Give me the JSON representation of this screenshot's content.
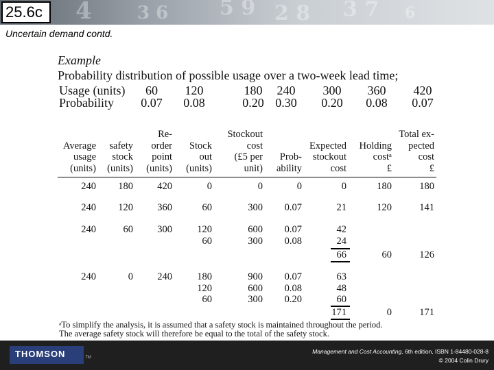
{
  "header": {
    "slide_number": "25.6c",
    "subtitle": "Uncertain demand contd."
  },
  "example": {
    "heading": "Example",
    "title": "Probability distribution of possible usage over a two-week lead time;",
    "usage_label": "Usage (units)",
    "probability_label": "Probability",
    "usage_values": [
      "60",
      "120",
      "180",
      "240",
      "300",
      "360",
      "420"
    ],
    "probability_values": [
      "0.07",
      "0.08",
      "0.20",
      "0.30",
      "0.20",
      "0.08",
      "0.07"
    ]
  },
  "table": {
    "headers": [
      "Average\nusage\n(units)",
      "safety\nstock\n(units)",
      "Re-\norder\npoint\n(units)",
      "Stock\nout\n(units)",
      "Stockout\ncost\n(£5 per\nunit)",
      "Prob-\nability",
      "Expected\nstockout\ncost",
      "Holding\ncostᵃ\n£",
      "Total ex-\npected\ncost\n£"
    ],
    "groups": [
      {
        "avg": "240",
        "safety": "180",
        "reorder": "420",
        "stockout": [
          "0"
        ],
        "cost": [
          "0"
        ],
        "prob": [
          "0"
        ],
        "expected": [
          "0"
        ],
        "subtotal": "",
        "holding": "180",
        "total": "180"
      },
      {
        "avg": "240",
        "safety": "120",
        "reorder": "360",
        "stockout": [
          "60"
        ],
        "cost": [
          "300"
        ],
        "prob": [
          "0.07"
        ],
        "expected": [
          "21"
        ],
        "subtotal": "",
        "holding": "120",
        "total": "141"
      },
      {
        "avg": "240",
        "safety": "60",
        "reorder": "300",
        "stockout": [
          "120",
          "60"
        ],
        "cost": [
          "600",
          "300"
        ],
        "prob": [
          "0.07",
          "0.08"
        ],
        "expected": [
          "42",
          "24"
        ],
        "subtotal": "66",
        "holding": "60",
        "total": "126"
      },
      {
        "avg": "240",
        "safety": "0",
        "reorder": "240",
        "stockout": [
          "180",
          "120",
          "60"
        ],
        "cost": [
          "900",
          "600",
          "300"
        ],
        "prob": [
          "0.07",
          "0.08",
          "0.20"
        ],
        "expected": [
          "63",
          "48",
          "60"
        ],
        "subtotal": "171",
        "holding": "0",
        "total": "171"
      }
    ]
  },
  "footnote": {
    "line1": "ᵃTo simplify the analysis, it is assumed that a safety stock is maintained throughout the period.",
    "line2": "The average safety stock will therefore be equal to the total of the safety stock."
  },
  "footer": {
    "logo_text": "THOMSON",
    "trademark": "TM",
    "credit_title": "Management and Cost Accounting",
    "credit_edition": ", 6th edition, ISBN 1-84480-028-8",
    "credit_copyright": "© 2004 Colin Drury"
  }
}
